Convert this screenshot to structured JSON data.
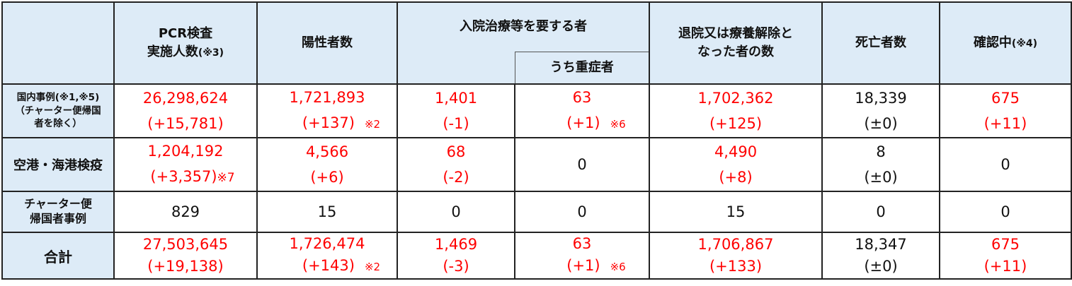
{
  "header": {
    "corner": "",
    "pcr_l1": "PCR検査",
    "pcr_l2": "実施人数",
    "pcr_note": "(※3)",
    "positive": "陽性者数",
    "hospital": "入院治療等を要する者",
    "severe": "うち重症者",
    "discharged_l1": "退院又は療養解除と",
    "discharged_l2": "なった者の数",
    "deaths": "死亡者数",
    "confirming": "確認中",
    "confirming_note": "(※4)"
  },
  "rows": [
    {
      "label_l1": "国内事例(※1,※5)",
      "label_l2": "（チャーター便帰国",
      "label_l3": "者を除く）",
      "pcr": "26,298,624",
      "pcr_d": "(+15,781)",
      "pos": "1,721,893",
      "pos_d": "(+137)",
      "pos_note": "※2",
      "hosp": "1,401",
      "hosp_d": "(-1)",
      "sev": "63",
      "sev_d": "(+1)",
      "sev_note": "※6",
      "dis": "1,702,362",
      "dis_d": "(+125)",
      "death": "18,339",
      "death_d": "(±0)",
      "conf": "675",
      "conf_d": "(+11)"
    },
    {
      "label_l1": "空港・海港検疫",
      "pcr": "1,204,192",
      "pcr_d": "(+3,357)",
      "pcr_note": "※7",
      "pos": "4,566",
      "pos_d": "(+6)",
      "hosp": "68",
      "hosp_d": "(-2)",
      "sev": "0",
      "dis": "4,490",
      "dis_d": "(+8)",
      "death": "8",
      "death_d": "(±0)",
      "conf": "0"
    },
    {
      "label_l1": "チャーター便",
      "label_l2": "帰国者事例",
      "pcr": "829",
      "pos": "15",
      "hosp": "0",
      "sev": "0",
      "dis": "15",
      "death": "0",
      "conf": "0"
    },
    {
      "label_l1": "合計",
      "pcr": "27,503,645",
      "pcr_d": "(+19,138)",
      "pos": "1,726,474",
      "pos_d": "(+143)",
      "pos_note": "※2",
      "hosp": "1,469",
      "hosp_d": "(-3)",
      "sev": "63",
      "sev_d": "(+1)",
      "sev_note": "※6",
      "dis": "1,706,867",
      "dis_d": "(+133)",
      "death": "18,347",
      "death_d": "(±0)",
      "conf": "675",
      "conf_d": "(+11)"
    }
  ],
  "colors": {
    "header_bg": "#ddebf7",
    "changed_value": "#ff0000",
    "unchanged_value": "#111111"
  }
}
